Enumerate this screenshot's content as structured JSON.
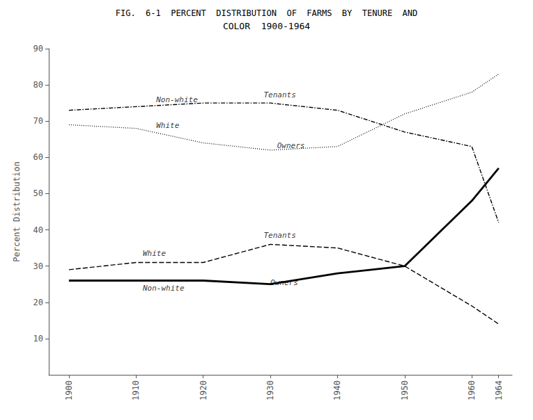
{
  "chart_data": {
    "type": "line",
    "title": "FIG.  6-1  PERCENT  DISTRIBUTION  OF  FARMS  BY  TENURE  AND",
    "subtitle": "COLOR  1900-1964",
    "y_label": "Percent Distribution",
    "x": [
      1900,
      1910,
      1920,
      1930,
      1940,
      1950,
      1960,
      1964
    ],
    "series": [
      {
        "color": "#000000",
        "line_style": "dashdot",
        "values": [
          73,
          74,
          75,
          75,
          73,
          67,
          63,
          42
        ]
      },
      {
        "color": "#000000",
        "line_style": "dotted",
        "values": [
          69,
          68,
          64,
          62,
          63,
          72,
          78,
          83
        ]
      },
      {
        "color": "#000000",
        "line_style": "dashed",
        "values": [
          29,
          31,
          31,
          36,
          35,
          30,
          19,
          14
        ]
      },
      {
        "color": "#000000",
        "line_style": "solid",
        "values": [
          26,
          26,
          26,
          25,
          28,
          30,
          48,
          57
        ]
      }
    ],
    "annotations": [
      {
        "text": "Non-white",
        "x": 1913,
        "y": 74.8
      },
      {
        "text": "Tenants",
        "x": 1929,
        "y": 76.2
      },
      {
        "text": "White",
        "x": 1913,
        "y": 67.8
      },
      {
        "text": "Owners",
        "x": 1931,
        "y": 62.2
      },
      {
        "text": "White",
        "x": 1911,
        "y": 32.5
      },
      {
        "text": "Tenants",
        "x": 1929,
        "y": 37.5
      },
      {
        "text": "Non-white",
        "x": 1911,
        "y": 22.8
      },
      {
        "text": "Owners",
        "x": 1930,
        "y": 24.3
      }
    ],
    "xlim": [
      1897,
      1966
    ],
    "xticks": [
      1900,
      1910,
      1920,
      1930,
      1940,
      1950,
      1960,
      1964
    ],
    "ylim": [
      0,
      90
    ],
    "yticks": [
      10,
      20,
      30,
      40,
      50,
      60,
      70,
      80,
      90
    ],
    "grid": false
  }
}
